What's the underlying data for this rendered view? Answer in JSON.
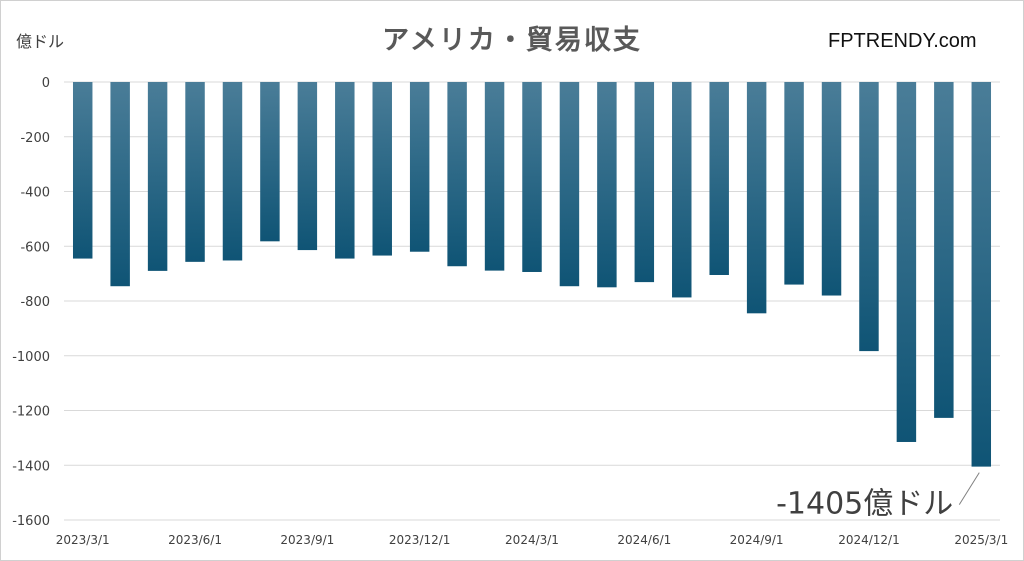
{
  "header": {
    "title": "アメリカ・貿易収支",
    "unit_label": "億ドル",
    "brand": "FPTRENDY.com"
  },
  "chart_data": {
    "type": "bar",
    "title": "アメリカ・貿易収支",
    "ylabel": "億ドル",
    "xlabel": "",
    "ylim": [
      -1600,
      0
    ],
    "yticks": [
      0,
      -200,
      -400,
      -600,
      -800,
      -1000,
      -1200,
      -1400,
      -1600
    ],
    "grid": true,
    "bar_color": "#1c5f80",
    "categories": [
      "2023/3/1",
      "2023/4/1",
      "2023/5/1",
      "2023/6/1",
      "2023/7/1",
      "2023/8/1",
      "2023/9/1",
      "2023/10/1",
      "2023/11/1",
      "2023/12/1",
      "2024/1/1",
      "2024/2/1",
      "2024/3/1",
      "2024/4/1",
      "2024/5/1",
      "2024/6/1",
      "2024/7/1",
      "2024/8/1",
      "2024/9/1",
      "2024/10/1",
      "2024/11/1",
      "2024/12/1",
      "2025/1/1",
      "2025/2/1",
      "2025/3/1"
    ],
    "shown_tick_labels": [
      "2023/3/1",
      "2023/6/1",
      "2023/9/1",
      "2023/12/1",
      "2024/3/1",
      "2024/6/1",
      "2024/9/1",
      "2024/12/1",
      "2025/3/1"
    ],
    "values": [
      -645,
      -746,
      -690,
      -657,
      -652,
      -582,
      -614,
      -645,
      -634,
      -620,
      -673,
      -689,
      -694,
      -746,
      -750,
      -731,
      -787,
      -705,
      -845,
      -740,
      -780,
      -983,
      -1315,
      -1227,
      -1405
    ],
    "annotation": {
      "text": "-1405億ドル",
      "category": "2025/3/1",
      "value": -1405
    }
  }
}
